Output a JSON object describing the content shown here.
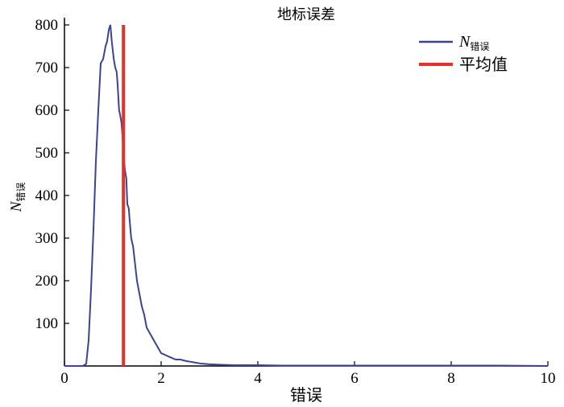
{
  "chart_data": {
    "type": "line",
    "title": "地标误差",
    "xlabel": "错误",
    "ylabel": {
      "main": "N",
      "sub": "错误"
    },
    "xlim": [
      0,
      10
    ],
    "ylim": [
      0,
      800
    ],
    "xticks": [
      "0",
      "2",
      "4",
      "6",
      "8",
      "10"
    ],
    "yticks": [
      "100",
      "200",
      "300",
      "400",
      "500",
      "600",
      "700",
      "800"
    ],
    "grid": false,
    "legend_position": "top-right",
    "colors": {
      "series": "#3b4395",
      "mean": "#e8302a",
      "axis": "#000000"
    },
    "series": [
      {
        "name": "N",
        "name_sub": "错误",
        "x": [
          0,
          0.2,
          0.38,
          0.45,
          0.5,
          0.55,
          0.6,
          0.65,
          0.7,
          0.75,
          0.8,
          0.85,
          0.88,
          0.92,
          0.95,
          0.98,
          1.0,
          1.02,
          1.05,
          1.08,
          1.1,
          1.13,
          1.15,
          1.18,
          1.2,
          1.22,
          1.25,
          1.28,
          1.3,
          1.33,
          1.35,
          1.38,
          1.42,
          1.45,
          1.5,
          1.55,
          1.6,
          1.65,
          1.7,
          1.75,
          1.8,
          1.85,
          1.9,
          1.95,
          2.0,
          2.1,
          2.2,
          2.3,
          2.4,
          2.5,
          2.6,
          2.7,
          2.8,
          2.9,
          3.0,
          3.2,
          3.5,
          4.0,
          4.5,
          5.0,
          6.0,
          7.0,
          8.0,
          9.0,
          10.0
        ],
        "y": [
          0,
          0,
          0,
          5,
          60,
          180,
          320,
          480,
          600,
          710,
          720,
          750,
          760,
          790,
          800,
          760,
          740,
          720,
          700,
          690,
          660,
          600,
          590,
          570,
          540,
          500,
          460,
          440,
          380,
          370,
          340,
          300,
          280,
          250,
          200,
          170,
          140,
          120,
          90,
          80,
          70,
          60,
          50,
          40,
          30,
          25,
          20,
          15,
          15,
          12,
          10,
          8,
          6,
          5,
          4,
          3,
          2,
          2,
          1,
          1,
          1,
          1,
          1,
          1,
          0
        ]
      },
      {
        "name": "平均值",
        "type": "vline",
        "x": 1.22
      }
    ]
  }
}
